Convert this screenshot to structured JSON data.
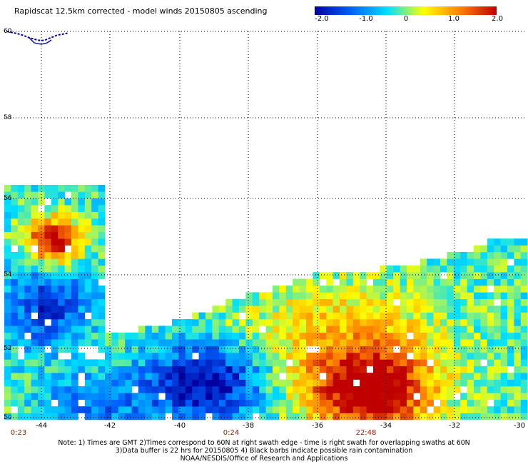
{
  "title": "Rapidscat 12.5km corrected - model winds 20150805 ascending",
  "colorbar": {
    "labels": [
      "-2.0",
      "-1.0",
      "0",
      "1.0",
      "2.0"
    ],
    "stops": [
      "#0000a0",
      "#0060ff",
      "#00e0ff",
      "#ffff00",
      "#ff8000",
      "#c00000"
    ]
  },
  "map": {
    "lat_labels": [
      "60",
      "58",
      "56",
      "54",
      "52",
      "50"
    ],
    "lon_labels": [
      "-44",
      "-42",
      "-40",
      "-38",
      "-36",
      "-34",
      "-32",
      "-30"
    ],
    "time_labels": [
      "0:23",
      "0:24",
      "22:48"
    ],
    "coast_color": "#0000b0"
  },
  "notes": [
    "Note: 1) Times are GMT 2)Times correspond to 60N at right swath edge - time is right swath for overlapping swaths at 60N",
    "3)Data buffer is 22 hrs for 20150805 4) Black barbs indicate possible rain contamination",
    "NOAA/NESDIS/Office of Research and Applications"
  ]
}
